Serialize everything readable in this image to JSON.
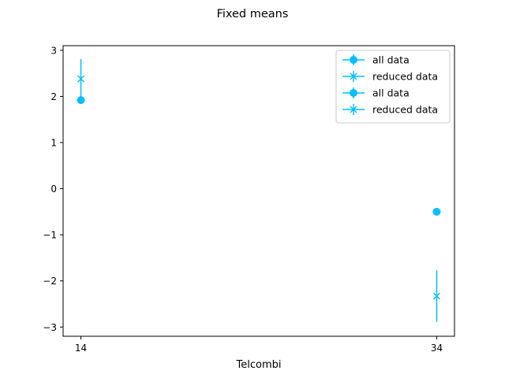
{
  "chart_data": {
    "type": "scatter",
    "title": "Fixed means",
    "xlabel": "Telcombi",
    "ylabel": "",
    "x_ticks": [
      14,
      34
    ],
    "y_ticks": [
      -3,
      -2,
      -1,
      0,
      1,
      2,
      3
    ],
    "y_tick_labels": [
      "−3",
      "−2",
      "−1",
      "0",
      "1",
      "2",
      "3"
    ],
    "xlim": [
      13,
      35
    ],
    "ylim": [
      -3.2,
      3.1
    ],
    "grid": false,
    "legend_position": "top-right",
    "color": "#00bfff",
    "series": [
      {
        "name": "all data",
        "marker": "circle",
        "points": [
          {
            "x": 14,
            "y": 1.92,
            "err": 0.05
          },
          {
            "x": 34,
            "y": -0.5,
            "err": 0.0
          }
        ]
      },
      {
        "name": "reduced data",
        "marker": "x",
        "points": [
          {
            "x": 14,
            "y": 2.38,
            "err": 0.43
          },
          {
            "x": 34,
            "y": -2.33,
            "err": 0.56
          }
        ]
      },
      {
        "name": "all data",
        "marker": "circle",
        "points": []
      },
      {
        "name": "reduced data",
        "marker": "x",
        "points": []
      }
    ]
  }
}
